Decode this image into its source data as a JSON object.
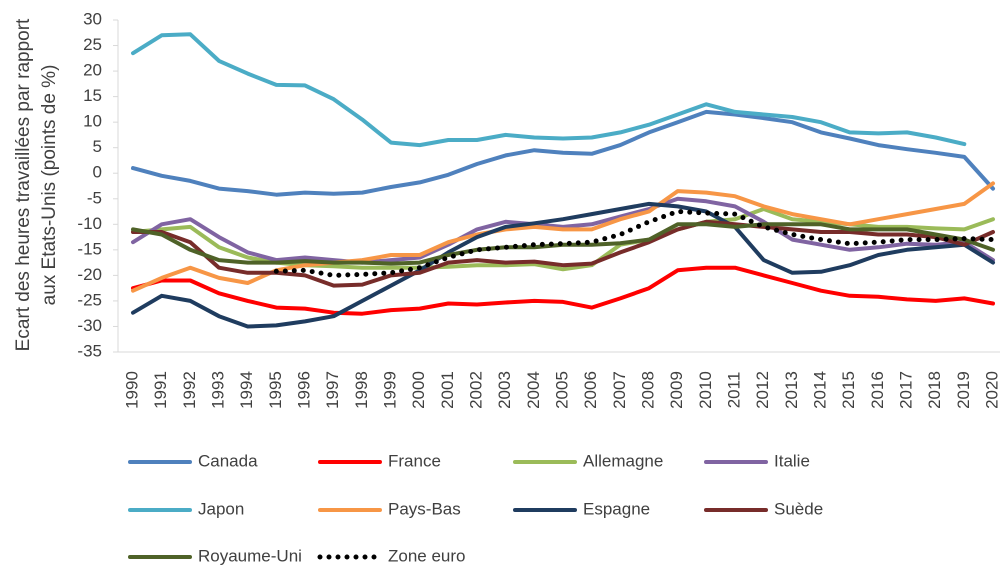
{
  "chart_data": {
    "type": "line",
    "ylabel": [
      "Ecart des heures travaillées par rapport",
      "aux Etats-Unis (points de %)"
    ],
    "categories": [
      "1990",
      "1991",
      "1992",
      "1993",
      "1994",
      "1995",
      "1996",
      "1997",
      "1998",
      "1999",
      "2000",
      "2001",
      "2002",
      "2003",
      "2004",
      "2005",
      "2006",
      "2007",
      "2008",
      "2009",
      "2010",
      "2011",
      "2012",
      "2013",
      "2014",
      "2015",
      "2016",
      "2017",
      "2018",
      "2019",
      "2020"
    ],
    "ylim": [
      -35,
      30
    ],
    "yticks": [
      -35,
      -30,
      -25,
      -20,
      -15,
      -10,
      -5,
      0,
      5,
      10,
      15,
      20,
      25,
      30
    ],
    "legend": "bottom",
    "series": [
      {
        "name": "Canada",
        "color": "#4f81bd",
        "values": [
          1,
          -0.5,
          -1.5,
          -3,
          -3.5,
          -4.2,
          -3.8,
          -4,
          -3.8,
          -2.7,
          -1.8,
          -0.3,
          1.8,
          3.5,
          4.5,
          4,
          3.8,
          5.5,
          8,
          10,
          12,
          11.5,
          10.8,
          10,
          8,
          6.8,
          5.5,
          4.7,
          4,
          3.2,
          -3
        ]
      },
      {
        "name": "France",
        "color": "#ff0000",
        "values": [
          -22.5,
          -21,
          -21,
          -23.5,
          -25,
          -26.3,
          -26.5,
          -27.3,
          -27.5,
          -26.8,
          -26.5,
          -25.5,
          -25.7,
          -25.3,
          -25,
          -25.2,
          -26.3,
          -24.5,
          -22.5,
          -19,
          -18.5,
          -18.5,
          -20,
          -21.5,
          -23,
          -24,
          -24.2,
          -24.7,
          -25,
          -24.5,
          -25.5
        ]
      },
      {
        "name": "Allemagne",
        "color": "#9bbb59",
        "values": [
          -11.5,
          -11,
          -10.5,
          -14.5,
          -16.5,
          -17.5,
          -18,
          -18.2,
          -18.5,
          -18.5,
          -18.5,
          -18.3,
          -18,
          -18,
          -17.8,
          -18.8,
          -18,
          -14,
          -13,
          -11,
          -9.5,
          -9,
          -7,
          -9,
          -9.5,
          -10,
          -10.5,
          -10.5,
          -10.8,
          -11,
          -9
        ]
      },
      {
        "name": "Italie",
        "color": "#8064a2",
        "values": [
          -13.5,
          -10,
          -9,
          -12.5,
          -15.5,
          -17,
          -16.5,
          -17,
          -17.5,
          -17,
          -16.5,
          -14,
          -11,
          -9.5,
          -10,
          -10.5,
          -10,
          -8.5,
          -7,
          -5,
          -5.5,
          -6.5,
          -9.5,
          -13,
          -14,
          -15,
          -14.5,
          -13.8,
          -14,
          -13.5,
          -17
        ]
      },
      {
        "name": "Japon",
        "color": "#4bacc6",
        "values": [
          23.5,
          27,
          27.2,
          22,
          19.5,
          17.3,
          17.2,
          14.5,
          10.5,
          6,
          5.5,
          6.5,
          6.5,
          7.5,
          7,
          6.8,
          7,
          8,
          9.5,
          11.5,
          13.5,
          12,
          11.5,
          11,
          10,
          8,
          7.8,
          8,
          7,
          5.7,
          null
        ]
      },
      {
        "name": "Pays-Bas",
        "color": "#f79646",
        "values": [
          -23,
          -20.5,
          -18.5,
          -20.5,
          -21.5,
          -19,
          -18,
          -17.5,
          -17,
          -16,
          -16,
          -13.5,
          -12,
          -11,
          -10.5,
          -11,
          -11,
          -9,
          -7.5,
          -3.5,
          -3.8,
          -4.5,
          -6.5,
          -8,
          -9,
          -10,
          -9,
          -8,
          -7,
          -6,
          -2
        ]
      },
      {
        "name": "Espagne",
        "color": "#1f3c5f",
        "values": [
          -27.3,
          -24,
          -25,
          -28,
          -30,
          -29.8,
          -29,
          -28,
          -25,
          -22,
          -19,
          -15.5,
          -12.5,
          -10.5,
          -9.8,
          -9,
          -8,
          -7,
          -6,
          -6.5,
          -7.5,
          -10.5,
          -17,
          -19.5,
          -19.3,
          -18,
          -16,
          -15,
          -14.5,
          -14,
          -17.5
        ]
      },
      {
        "name": "Suède",
        "color": "#772c2a",
        "values": [
          -11.5,
          -11.5,
          -13.5,
          -18.5,
          -19.5,
          -19.5,
          -20,
          -22,
          -21.8,
          -20,
          -19.5,
          -17.5,
          -17,
          -17.5,
          -17.3,
          -18,
          -17.7,
          -15.5,
          -13.5,
          -11,
          -9.5,
          -10,
          -10.5,
          -11,
          -11.5,
          -11.5,
          -12,
          -12,
          -12.5,
          -14,
          -11.5
        ]
      },
      {
        "name": "Royaume-Uni",
        "color": "#4f6228",
        "values": [
          -11,
          -12,
          -15,
          -17,
          -17.5,
          -17.5,
          -17.2,
          -17.5,
          -17.5,
          -17.7,
          -17.5,
          -16,
          -15,
          -14.5,
          -14.5,
          -14,
          -14,
          -13.7,
          -13,
          -10,
          -10,
          -10.5,
          -10,
          -10,
          -10,
          -11,
          -11,
          -11,
          -12,
          -13,
          -15
        ]
      },
      {
        "name": "Zone euro",
        "color": "#000000",
        "line_style": "dotted",
        "values": [
          null,
          null,
          null,
          null,
          null,
          -19.2,
          -19,
          -20,
          -19.8,
          -19.5,
          -18.5,
          -16.5,
          -15,
          -14.5,
          -14,
          -13.8,
          -13.5,
          -12,
          -9.5,
          -7.5,
          -7.8,
          -8,
          -10.5,
          -12,
          -13,
          -13.8,
          -13.5,
          -13,
          -13,
          -12.8,
          -13
        ]
      }
    ]
  }
}
